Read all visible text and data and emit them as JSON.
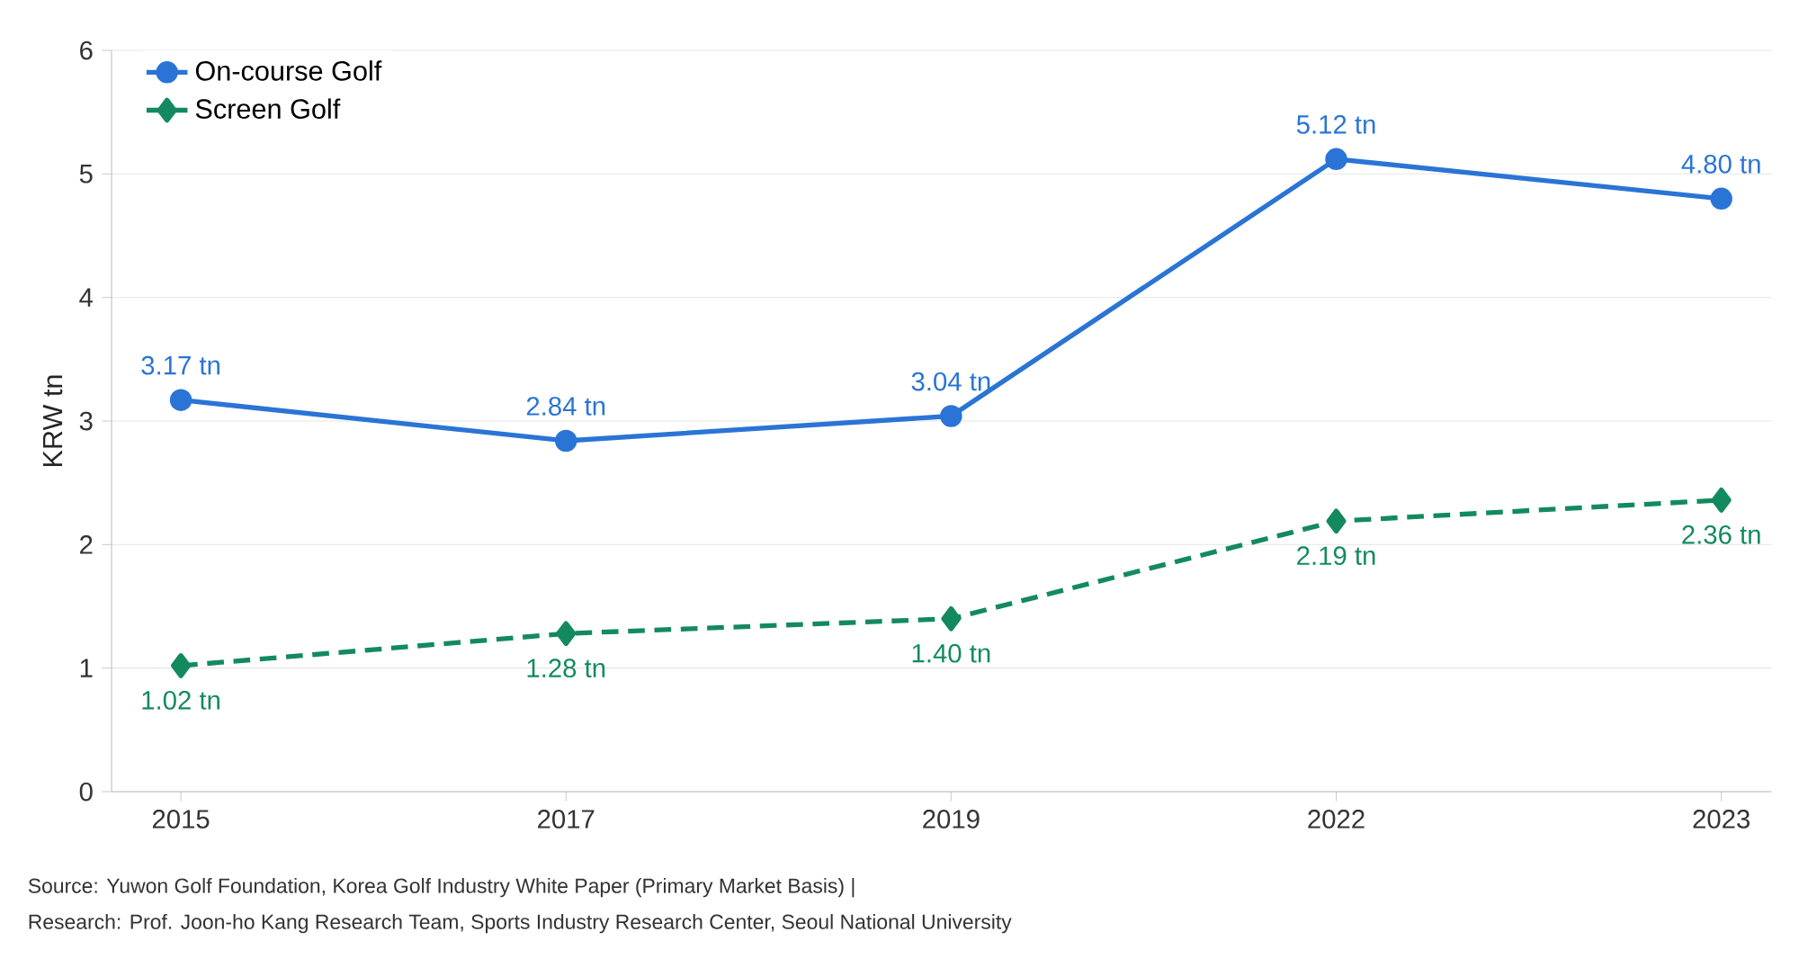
{
  "chart_data": {
    "type": "line",
    "ylabel": "KRW tn",
    "categories": [
      "2015",
      "2017",
      "2019",
      "2022",
      "2023"
    ],
    "series": [
      {
        "name": "On-course Golf",
        "color": "#2a74d6",
        "values": [
          3.17,
          2.84,
          3.04,
          5.12,
          4.8
        ],
        "value_labels": [
          "3.17 tn",
          "2.84 tn",
          "3.04 tn",
          "5.12 tn",
          "4.80 tn"
        ],
        "marker": "circle",
        "line_style": "solid"
      },
      {
        "name": "Screen Golf",
        "color": "#138a5e",
        "values": [
          1.02,
          1.28,
          1.4,
          2.19,
          2.36
        ],
        "value_labels": [
          "1.02 tn",
          "1.28 tn",
          "1.40 tn",
          "2.19 tn",
          "2.36 tn"
        ],
        "marker": "diamond",
        "line_style": "dashed"
      }
    ],
    "ylim": [
      0,
      6
    ],
    "yticks": [
      0,
      1,
      2,
      3,
      4,
      5,
      6
    ],
    "grid": "y",
    "legend": "top left",
    "annotations": [
      "Source: Yuwon Golf Foundation, Korea Golf Industry White Paper (Primary Market Basis) |",
      "Research: Prof. Joon-ho Kang Research Team, Sports Industry Research Center, Seoul National University"
    ]
  }
}
